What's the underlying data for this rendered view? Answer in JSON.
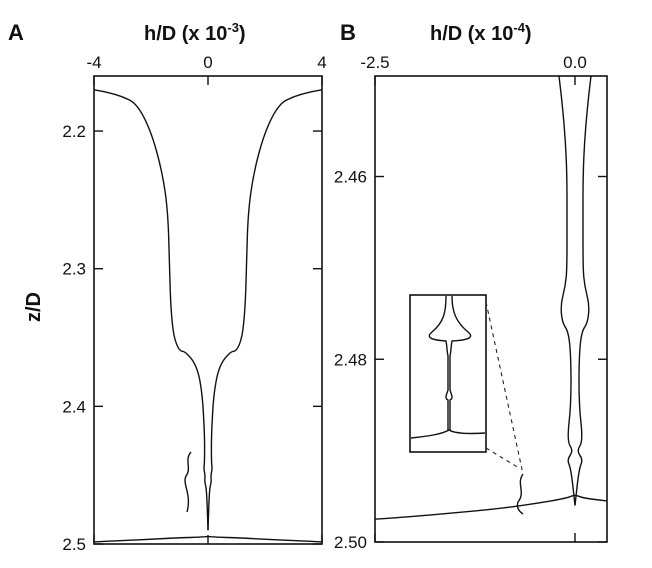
{
  "chart_data": [
    {
      "type": "line",
      "panel": "A",
      "xlabel_main": "h/D (x 10",
      "xlabel_exp": "-3",
      "xlabel_close": ")",
      "ylabel": "z/D",
      "xticks": [
        "-4",
        "0",
        "4"
      ],
      "xlim": [
        -4,
        4
      ],
      "yticks": [
        "2.2",
        "2.3",
        "2.4",
        "2.5"
      ],
      "ylim": [
        2.5,
        2.16
      ],
      "series": [
        {
          "x": [
            -4,
            -3.5,
            -3,
            -2.5,
            -2,
            -1.6,
            -1.4,
            -1.35,
            -1.3,
            -1.2,
            -1.0,
            -0.8,
            -0.4,
            -0.2,
            -0.12,
            -0.12,
            -0.15,
            -0.1,
            -0.12,
            -0.05,
            0
          ],
          "y": [
            2.17,
            2.172,
            2.175,
            2.18,
            2.2,
            2.23,
            2.26,
            2.3,
            2.33,
            2.35,
            2.36,
            2.36,
            2.37,
            2.39,
            2.42,
            2.44,
            2.445,
            2.45,
            2.455,
            2.46,
            2.49
          ]
        },
        {
          "x": [
            4,
            3.5,
            3,
            2.5,
            2,
            1.6,
            1.4,
            1.35,
            1.3,
            1.2,
            1.0,
            0.8,
            0.4,
            0.2,
            0.12,
            0.12,
            0.15,
            0.1,
            0.12,
            0.05,
            0
          ],
          "y": [
            2.17,
            2.172,
            2.175,
            2.18,
            2.2,
            2.23,
            2.26,
            2.3,
            2.33,
            2.35,
            2.36,
            2.36,
            2.37,
            2.39,
            2.42,
            2.44,
            2.445,
            2.45,
            2.455,
            2.46,
            2.49
          ]
        },
        {
          "x": [
            -4,
            -3,
            -2,
            -1,
            -0.3,
            0,
            0.3,
            1,
            2,
            3,
            4
          ],
          "y": [
            2.4985,
            2.4975,
            2.4965,
            2.4955,
            2.495,
            2.4945,
            2.495,
            2.4955,
            2.4965,
            2.4975,
            2.4985
          ]
        }
      ]
    },
    {
      "type": "line",
      "panel": "B",
      "xlabel_main": "h/D (x 10",
      "xlabel_exp": "-4",
      "xlabel_close": ")",
      "xticks": [
        "-2.5",
        "0.0"
      ],
      "xlim": [
        -2.5,
        0.4
      ],
      "yticks": [
        "2.46",
        "2.48",
        "2.50"
      ],
      "ylim": [
        2.5,
        2.449
      ],
      "series": [
        {
          "x": [
            -0.2,
            -0.16,
            -0.12,
            -0.1,
            -0.1,
            -0.1,
            -0.12,
            -0.18,
            -0.16,
            -0.08,
            -0.05,
            -0.05,
            -0.1,
            -0.02,
            -0.1,
            -0.05,
            0
          ],
          "y": [
            2.449,
            2.452,
            2.456,
            2.46,
            2.465,
            2.47,
            2.472,
            2.474,
            2.476,
            2.477,
            2.48,
            2.485,
            2.489,
            2.49,
            2.491,
            2.492,
            2.496
          ]
        },
        {
          "x": [
            0.2,
            0.16,
            0.12,
            0.1,
            0.1,
            0.1,
            0.12,
            0.18,
            0.16,
            0.08,
            0.05,
            0.05,
            0.1,
            0.02,
            0.1,
            0.05,
            0
          ],
          "y": [
            2.449,
            2.452,
            2.456,
            2.46,
            2.465,
            2.47,
            2.472,
            2.474,
            2.476,
            2.477,
            2.48,
            2.485,
            2.489,
            2.49,
            2.491,
            2.492,
            2.496
          ]
        },
        {
          "x": [
            -2.5,
            -2,
            -1.5,
            -1,
            -0.5,
            -0.1,
            0,
            0.1,
            0.4
          ],
          "y": [
            2.4975,
            2.4972,
            2.4968,
            2.4964,
            2.4958,
            2.4952,
            2.4948,
            2.4952,
            2.4955
          ]
        }
      ]
    }
  ]
}
